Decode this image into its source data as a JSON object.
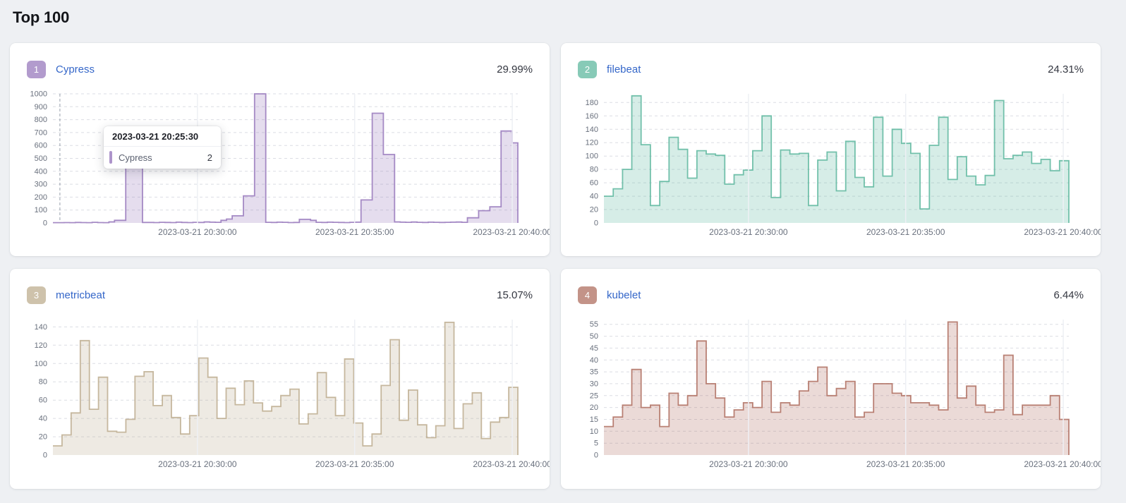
{
  "page": {
    "title": "Top 100"
  },
  "colors": {
    "page_bg": "#eef0f3",
    "card_bg": "#ffffff",
    "link": "#3567c9",
    "text_dark": "#343741",
    "axis_label": "#69707d",
    "grid_h": "#dbdde4",
    "grid_v": "#eef0f5",
    "crosshair": "#98a0ac"
  },
  "x_axis": {
    "labels": [
      "2023-03-21 20:30:00",
      "2023-03-21 20:35:00",
      "2023-03-21 20:40:00"
    ],
    "fractions": [
      0.311,
      0.649,
      0.988
    ]
  },
  "cards": [
    {
      "rank": "1",
      "name": "Cypress",
      "percent": "29.99%",
      "color": "#9170B8"
    },
    {
      "rank": "2",
      "name": "filebeat",
      "percent": "24.31%",
      "color": "#54B399"
    },
    {
      "rank": "3",
      "name": "metricbeat",
      "percent": "15.07%",
      "color": "#B9A888"
    },
    {
      "rank": "4",
      "name": "kubelet",
      "percent": "6.44%",
      "color": "#AA6556"
    }
  ],
  "tooltip": {
    "title": "2023-03-21 20:25:30",
    "series": "Cypress",
    "value": "2"
  },
  "chart_data": [
    {
      "type": "area",
      "name": "Cypress",
      "x_labels": [
        "2023-03-21 20:30:00",
        "2023-03-21 20:35:00",
        "2023-03-21 20:40:00"
      ],
      "y_ticks": [
        1000,
        900,
        800,
        700,
        600,
        500,
        400,
        300,
        200,
        100,
        0
      ],
      "y_max": 1000,
      "crosshair_fraction": 0.015,
      "values": [
        2,
        2,
        3,
        2,
        4,
        3,
        2,
        5,
        3,
        2,
        8,
        20,
        20,
        500,
        500,
        500,
        4,
        4,
        3,
        5,
        4,
        3,
        6,
        4,
        3,
        5,
        4,
        8,
        6,
        5,
        20,
        30,
        55,
        55,
        210,
        210,
        1000,
        1000,
        5,
        4,
        6,
        5,
        3,
        4,
        28,
        28,
        20,
        5,
        4,
        6,
        5,
        4,
        3,
        5,
        6,
        178,
        178,
        850,
        850,
        530,
        530,
        8,
        6,
        5,
        7,
        5,
        4,
        6,
        5,
        4,
        5,
        6,
        7,
        5,
        40,
        40,
        95,
        95,
        125,
        125,
        712,
        712,
        620
      ]
    },
    {
      "type": "area",
      "name": "filebeat",
      "x_labels": [
        "2023-03-21 20:30:00",
        "2023-03-21 20:35:00",
        "2023-03-21 20:40:00"
      ],
      "y_ticks": [
        180,
        160,
        140,
        120,
        100,
        80,
        60,
        40,
        20,
        0
      ],
      "y_max": 193,
      "crosshair_fraction": null,
      "values": [
        40,
        51,
        80,
        190,
        117,
        26,
        62,
        128,
        110,
        67,
        108,
        103,
        101,
        58,
        72,
        79,
        108,
        160,
        38,
        109,
        103,
        104,
        26,
        94,
        106,
        48,
        122,
        68,
        54,
        158,
        70,
        140,
        119,
        104,
        21,
        116,
        158,
        65,
        99,
        70,
        57,
        71,
        183,
        96,
        101,
        106,
        89,
        95,
        78,
        93
      ]
    },
    {
      "type": "area",
      "name": "metricbeat",
      "x_labels": [
        "2023-03-21 20:30:00",
        "2023-03-21 20:35:00",
        "2023-03-21 20:40:00"
      ],
      "y_ticks": [
        140,
        120,
        100,
        80,
        60,
        40,
        20,
        0
      ],
      "y_max": 148,
      "crosshair_fraction": null,
      "values": [
        10,
        22,
        46,
        125,
        50,
        85,
        26,
        25,
        39,
        86,
        91,
        54,
        65,
        41,
        23,
        43,
        106,
        85,
        40,
        73,
        55,
        81,
        57,
        48,
        53,
        65,
        72,
        34,
        45,
        90,
        63,
        43,
        105,
        35,
        10,
        23,
        76,
        126,
        38,
        71,
        33,
        19,
        32,
        145,
        29,
        56,
        68,
        18,
        36,
        41,
        74
      ]
    },
    {
      "type": "area",
      "name": "kubelet",
      "x_labels": [
        "2023-03-21 20:30:00",
        "2023-03-21 20:35:00",
        "2023-03-21 20:40:00"
      ],
      "y_ticks": [
        55,
        50,
        45,
        40,
        35,
        30,
        25,
        20,
        15,
        10,
        5,
        0
      ],
      "y_max": 57,
      "crosshair_fraction": null,
      "values": [
        12,
        16,
        21,
        36,
        20,
        21,
        12,
        26,
        21,
        25,
        48,
        30,
        24,
        16,
        19,
        22,
        20,
        31,
        18,
        22,
        21,
        27,
        31,
        37,
        25,
        28,
        31,
        16,
        18,
        30,
        30,
        26,
        25,
        22,
        22,
        21,
        19,
        56,
        24,
        29,
        21,
        18,
        19,
        42,
        17,
        21,
        21,
        21,
        25,
        15
      ]
    }
  ]
}
